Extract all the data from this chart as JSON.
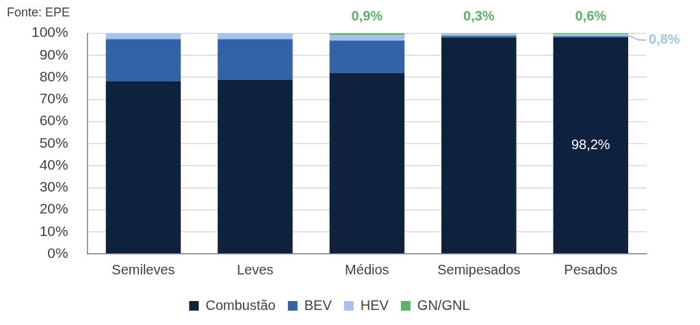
{
  "chart_data": {
    "type": "bar",
    "stacked": true,
    "categories": [
      "Semileves",
      "Leves",
      "Médios",
      "Semipesados",
      "Pesados"
    ],
    "series": [
      {
        "name": "Combustão",
        "color": "#0e2240",
        "values": [
          78.2,
          78.8,
          81.9,
          98.1,
          98.2
        ],
        "value_labels": [
          null,
          null,
          null,
          null,
          "98,2%"
        ]
      },
      {
        "name": "BEV",
        "color": "#3063a8",
        "values": [
          19.1,
          18.5,
          14.8,
          0.8,
          0.4
        ]
      },
      {
        "name": "HEV",
        "color": "#a4c3ec",
        "values": [
          2.7,
          2.7,
          2.4,
          0.8,
          0.8
        ],
        "value_labels": [
          null,
          null,
          null,
          null,
          "0,8%"
        ]
      },
      {
        "name": "GN/GNL",
        "color": "#5cb46a",
        "values": [
          0,
          0,
          0.9,
          0.3,
          0.6
        ],
        "value_labels": [
          null,
          null,
          "0,9%",
          "0,3%",
          "0,6%"
        ]
      }
    ],
    "ylim": [
      0,
      100
    ],
    "yticks": [
      {
        "value": 0,
        "label": "0%"
      },
      {
        "value": 10,
        "label": "10%"
      },
      {
        "value": 20,
        "label": "20%"
      },
      {
        "value": 30,
        "label": "30%"
      },
      {
        "value": 40,
        "label": "40%"
      },
      {
        "value": 50,
        "label": "50%"
      },
      {
        "value": 60,
        "label": "60%"
      },
      {
        "value": 70,
        "label": "70%"
      },
      {
        "value": 80,
        "label": "80%"
      },
      {
        "value": 90,
        "label": "90%"
      },
      {
        "value": 100,
        "label": "100%"
      }
    ],
    "grid": "y",
    "legend": "bottom",
    "annotations": [
      "Fonte: EPE"
    ]
  }
}
